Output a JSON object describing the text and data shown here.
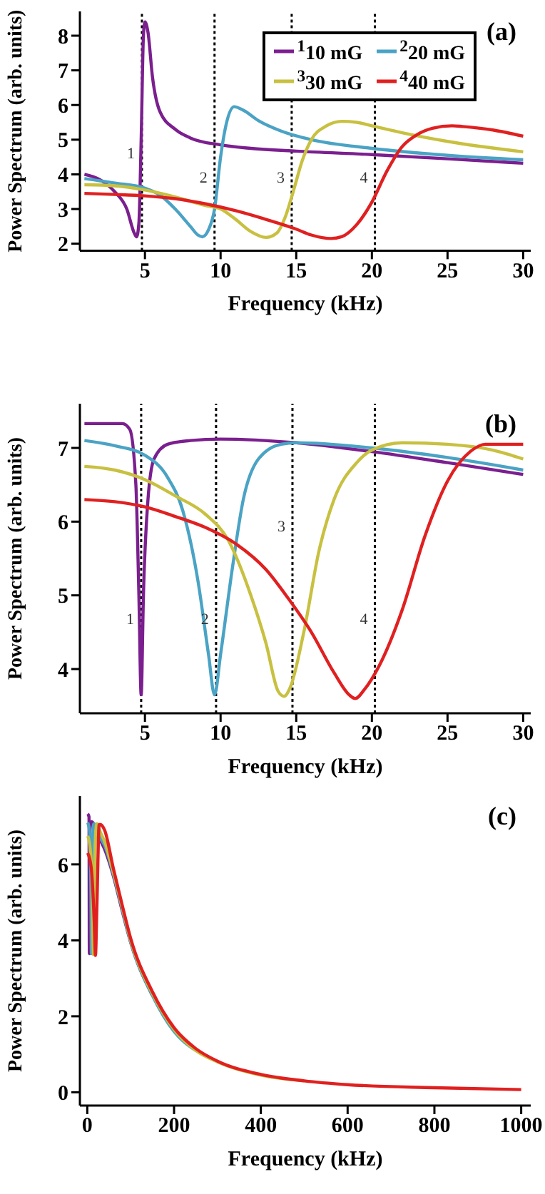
{
  "chart_data": [
    {
      "type": "line",
      "xlabel": "Frequency (kHz)",
      "ylabel": "Power Spectrum (arb. units)",
      "xlim": [
        0.7,
        30.5
      ],
      "ylim": [
        1.8,
        8.7
      ],
      "xticks": [
        5,
        10,
        15,
        20,
        25,
        30
      ],
      "yticks": [
        2,
        3,
        4,
        5,
        6,
        7,
        8
      ],
      "legend": "top right",
      "annotations": [
        "(a)",
        "1",
        "2",
        "3",
        "4"
      ],
      "ref_lines": [
        {
          "axis": "x",
          "value": 4.8,
          "color": "#000000",
          "line_style": "dotted"
        },
        {
          "axis": "x",
          "value": 9.6,
          "color": "#000000",
          "line_style": "dotted"
        },
        {
          "axis": "x",
          "value": 14.7,
          "color": "#000000",
          "line_style": "dotted"
        },
        {
          "axis": "x",
          "value": 20.2,
          "color": "#000000",
          "line_style": "dotted"
        }
      ],
      "series": [
        {
          "name": "$^{1}$10 mG",
          "color": "#7b1f8f",
          "x": [
            1,
            2,
            3,
            3.8,
            4.3,
            4.45,
            4.6,
            4.75,
            4.9,
            5.0,
            5.2,
            5.5,
            6,
            7,
            8,
            10,
            12,
            15,
            20,
            25,
            30
          ],
          "values": [
            4.0,
            3.85,
            3.5,
            3.0,
            2.3,
            2.2,
            2.6,
            5.0,
            8.0,
            8.4,
            8.1,
            6.8,
            5.8,
            5.3,
            5.05,
            4.85,
            4.75,
            4.67,
            4.57,
            4.45,
            4.32
          ]
        },
        {
          "name": "$^{2}$20 mG",
          "color": "#4aa3c4",
          "x": [
            1,
            3,
            5,
            6,
            7,
            8,
            8.5,
            8.8,
            9.2,
            9.6,
            10,
            10.4,
            10.9,
            11.5,
            12.5,
            14,
            16,
            20,
            25,
            30
          ],
          "values": [
            3.88,
            3.75,
            3.6,
            3.4,
            3.0,
            2.5,
            2.25,
            2.2,
            2.4,
            3.0,
            4.5,
            5.5,
            5.95,
            5.85,
            5.55,
            5.25,
            5.0,
            4.75,
            4.55,
            4.42
          ]
        },
        {
          "name": "$^{3}$30 mG",
          "color": "#c8c040",
          "x": [
            1,
            3,
            5,
            7,
            9,
            10,
            11,
            12,
            13,
            13.7,
            14.3,
            14.8,
            15.4,
            16,
            17,
            18,
            19,
            20,
            22,
            25,
            30
          ],
          "values": [
            3.7,
            3.67,
            3.55,
            3.35,
            3.1,
            3.0,
            2.7,
            2.35,
            2.18,
            2.3,
            2.8,
            3.5,
            4.4,
            5.0,
            5.4,
            5.53,
            5.5,
            5.4,
            5.2,
            4.95,
            4.65
          ]
        },
        {
          "name": "$^{4}$40 mG",
          "color": "#e02020",
          "x": [
            1,
            3,
            5,
            7,
            9,
            11,
            13,
            15,
            16,
            17.3,
            18,
            19,
            20,
            21,
            22,
            23,
            24,
            25.3,
            26,
            28,
            30
          ],
          "values": [
            3.45,
            3.42,
            3.38,
            3.3,
            3.15,
            2.95,
            2.7,
            2.42,
            2.25,
            2.15,
            2.2,
            2.55,
            3.2,
            4.1,
            4.8,
            5.15,
            5.33,
            5.4,
            5.38,
            5.28,
            5.1
          ]
        }
      ]
    },
    {
      "type": "line",
      "xlabel": "Frequency (kHz)",
      "ylabel": "Power Spectrum (arb. units)",
      "xlim": [
        0.7,
        30.5
      ],
      "ylim": [
        3.4,
        7.6
      ],
      "xticks": [
        5,
        10,
        15,
        20,
        25,
        30
      ],
      "yticks": [
        4,
        5,
        6,
        7
      ],
      "annotations": [
        "(b)",
        "1",
        "2",
        "3",
        "4"
      ],
      "ref_lines": [
        {
          "axis": "x",
          "value": 4.75,
          "color": "#000000",
          "line_style": "dotted"
        },
        {
          "axis": "x",
          "value": 9.7,
          "color": "#000000",
          "line_style": "dotted"
        },
        {
          "axis": "x",
          "value": 14.75,
          "color": "#000000",
          "line_style": "dotted"
        },
        {
          "axis": "x",
          "value": 20.2,
          "color": "#000000",
          "line_style": "dotted"
        }
      ],
      "series": [
        {
          "color": "#7b1f8f",
          "x": [
            1,
            3.5,
            4.0,
            4.4,
            4.6,
            4.75,
            4.9,
            5.2,
            5.6,
            6.5,
            8,
            10,
            15,
            20,
            25,
            30
          ],
          "values": [
            7.33,
            7.33,
            7.25,
            6.5,
            5.0,
            3.65,
            5.0,
            6.3,
            6.85,
            7.05,
            7.1,
            7.12,
            7.07,
            6.95,
            6.8,
            6.64
          ]
        },
        {
          "color": "#4aa3c4",
          "x": [
            1,
            3,
            5,
            6.5,
            7.5,
            8.5,
            9.2,
            9.6,
            10,
            10.8,
            11.5,
            12.5,
            14,
            15,
            20,
            25,
            30
          ],
          "values": [
            7.1,
            7.03,
            6.9,
            6.6,
            6.15,
            5.2,
            4.2,
            3.65,
            4.2,
            5.4,
            6.3,
            6.85,
            7.05,
            7.07,
            7.0,
            6.87,
            6.7
          ]
        },
        {
          "color": "#c8c040",
          "x": [
            1,
            3,
            5,
            7,
            9,
            10.5,
            12,
            13,
            13.8,
            14.2,
            14.6,
            15.5,
            16.5,
            17.5,
            19,
            20,
            22,
            25,
            28,
            30
          ],
          "values": [
            6.75,
            6.7,
            6.57,
            6.35,
            6.1,
            5.75,
            5.0,
            4.35,
            3.7,
            3.63,
            3.75,
            4.5,
            5.6,
            6.3,
            6.8,
            6.97,
            7.07,
            7.05,
            6.97,
            6.85
          ]
        },
        {
          "color": "#e02020",
          "x": [
            1,
            3,
            5,
            7,
            9,
            11,
            13,
            14.5,
            16,
            17.5,
            18.5,
            18.9,
            19.5,
            20.5,
            22,
            23.5,
            25,
            26.5,
            27.5,
            30
          ],
          "values": [
            6.3,
            6.27,
            6.2,
            6.07,
            5.92,
            5.7,
            5.35,
            4.95,
            4.5,
            3.95,
            3.65,
            3.6,
            3.72,
            4.05,
            4.8,
            5.8,
            6.55,
            6.95,
            7.05,
            7.05
          ]
        }
      ]
    },
    {
      "type": "line",
      "xlabel": "Frequency (kHz)",
      "ylabel": "Power Spectrum (arb. units)",
      "xlim": [
        -17,
        1022
      ],
      "ylim": [
        -0.35,
        7.8
      ],
      "xticks": [
        0,
        200,
        400,
        600,
        800,
        1000
      ],
      "yticks": [
        0,
        2,
        4,
        6
      ],
      "annotations": [
        "(c)"
      ],
      "series": [
        {
          "color": "#7b1f8f",
          "x": [
            1,
            4,
            4.75,
            5.6,
            10,
            30,
            40,
            60,
            80,
            100,
            150
          ],
          "values": [
            7.33,
            7.25,
            3.65,
            6.85,
            7.12,
            6.64,
            6.4,
            5.7,
            4.8,
            3.95,
            2.55
          ]
        },
        {
          "color": "#4aa3c4",
          "x": [
            1,
            5,
            8.5,
            9.6,
            11.5,
            15,
            30,
            40,
            60,
            80,
            100,
            150,
            200,
            250
          ],
          "values": [
            7.1,
            6.9,
            5.2,
            3.65,
            6.3,
            7.07,
            6.7,
            6.5,
            5.75,
            4.85,
            3.95,
            2.55,
            1.6,
            1.1
          ]
        },
        {
          "color": "#c8c040",
          "x": [
            1,
            5,
            10.5,
            14.2,
            17.5,
            22,
            30,
            40,
            60,
            80,
            100,
            150,
            200,
            250,
            300,
            400,
            500
          ],
          "values": [
            6.75,
            6.57,
            5.75,
            3.63,
            6.3,
            7.07,
            6.85,
            6.6,
            5.8,
            4.9,
            4.0,
            2.6,
            1.65,
            1.1,
            0.8,
            0.45,
            0.3
          ]
        },
        {
          "color": "#e02020",
          "x": [
            1,
            9,
            16,
            18.9,
            22,
            27.5,
            30,
            40,
            60,
            80,
            100,
            150,
            200,
            250,
            300,
            400,
            500,
            600,
            800,
            1000
          ],
          "values": [
            6.3,
            5.92,
            4.5,
            3.6,
            4.8,
            7.05,
            7.05,
            6.9,
            5.9,
            4.95,
            4.05,
            2.65,
            1.7,
            1.15,
            0.82,
            0.47,
            0.3,
            0.2,
            0.12,
            0.07
          ]
        }
      ]
    }
  ]
}
